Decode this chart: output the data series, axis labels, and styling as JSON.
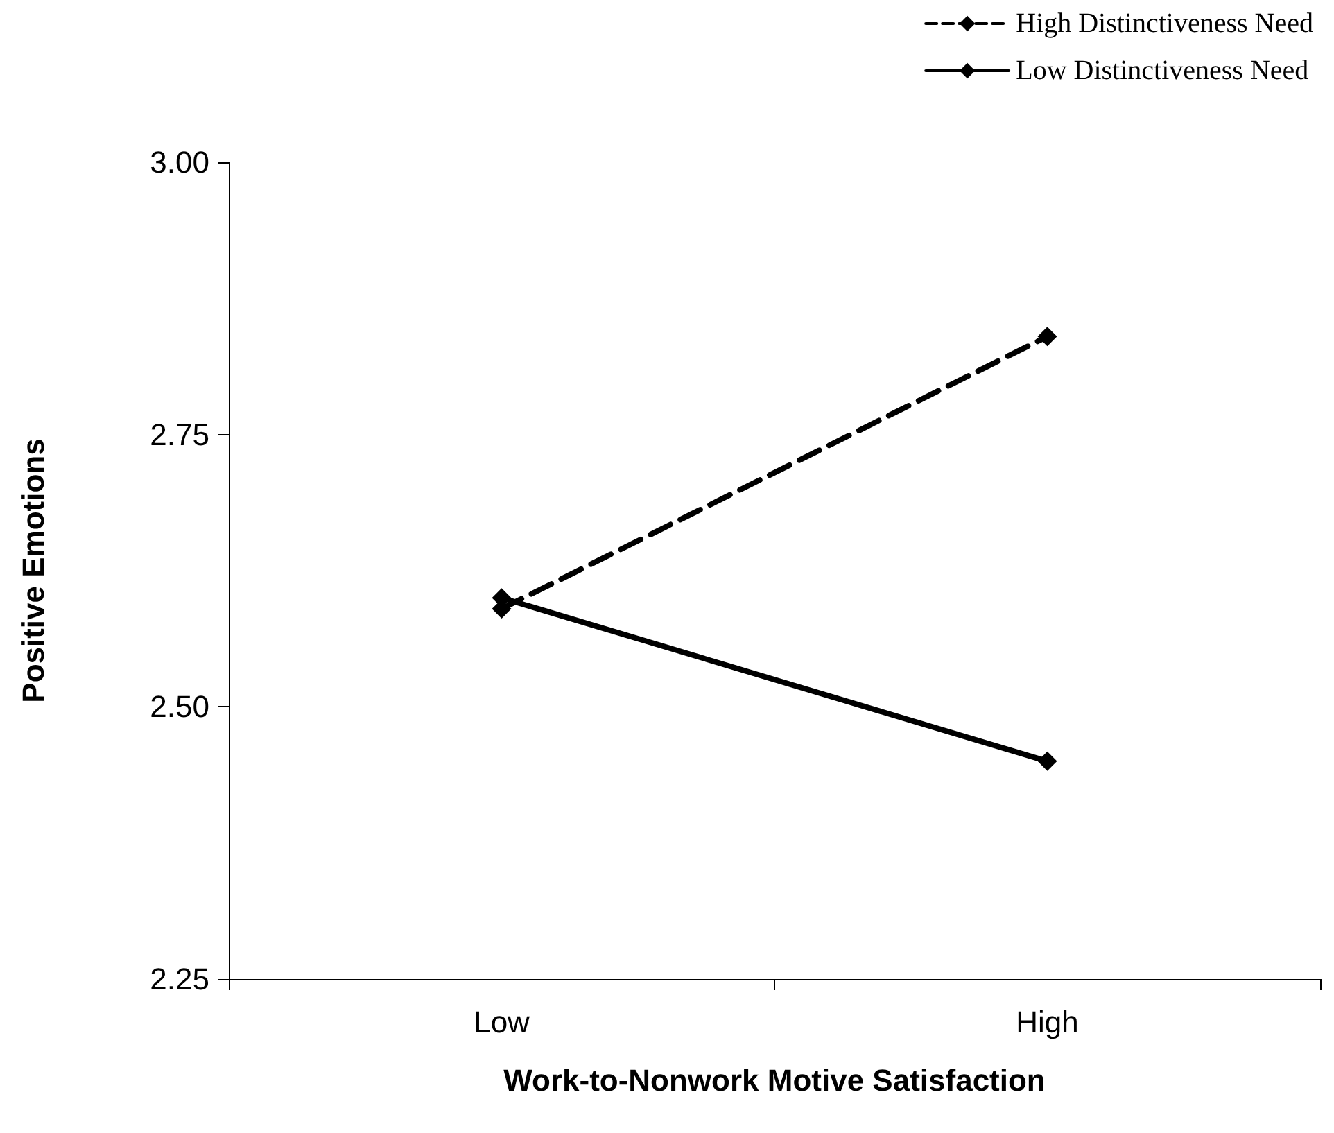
{
  "chart_data": {
    "type": "line",
    "xlabel": "Work-to-Nonwork Motive Satisfaction",
    "ylabel": "Positive Emotions",
    "categories": [
      "Low",
      "High"
    ],
    "series": [
      {
        "name": "High Distinctiveness Need",
        "color": "#000000",
        "values": [
          2.59,
          2.84
        ],
        "line_style": "dashed"
      },
      {
        "name": "Low Distinctiveness Need",
        "color": "#000000",
        "values": [
          2.6,
          2.45
        ],
        "line_style": "solid"
      }
    ],
    "ylim": [
      2.25,
      3.0
    ],
    "yticks": [
      2.25,
      {
        "value": 2.5,
        "label": "2.50"
      },
      2.75,
      {
        "value": 3.0,
        "label": "3.00"
      }
    ],
    "grid": false,
    "legend": "top right",
    "marker": "diamond"
  }
}
